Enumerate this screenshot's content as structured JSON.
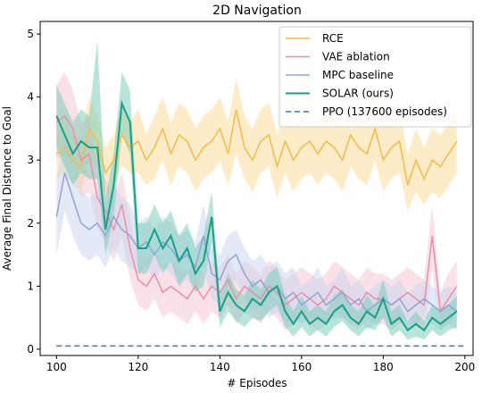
{
  "chart_data": {
    "type": "line",
    "title": "2D Navigation",
    "xlabel": "# Episodes",
    "ylabel": "Average Final Distance to Goal",
    "xlim": [
      96,
      202
    ],
    "ylim": [
      -0.1,
      5.2
    ],
    "xticks": [
      100,
      120,
      140,
      160,
      180,
      200
    ],
    "yticks": [
      0,
      1,
      2,
      3,
      4,
      5
    ],
    "grid": false,
    "legend_position": "top-right",
    "series": [
      {
        "name": "RCE",
        "color": "#f5b94c",
        "fill": "#fcd98f",
        "style": "solid",
        "x": [
          100,
          102,
          104,
          106,
          108,
          110,
          112,
          114,
          116,
          118,
          120,
          122,
          124,
          126,
          128,
          130,
          132,
          134,
          136,
          138,
          140,
          142,
          144,
          146,
          148,
          150,
          152,
          154,
          156,
          158,
          160,
          162,
          164,
          166,
          168,
          170,
          172,
          174,
          176,
          178,
          180,
          182,
          184,
          186,
          188,
          190,
          192,
          194,
          196,
          198
        ],
        "y": [
          3.1,
          3.2,
          3.0,
          2.9,
          3.5,
          3.3,
          2.8,
          3.0,
          3.4,
          3.2,
          3.3,
          3.0,
          3.2,
          3.5,
          3.1,
          3.4,
          3.3,
          3.0,
          3.2,
          3.3,
          3.5,
          3.1,
          3.8,
          3.2,
          3.0,
          3.3,
          3.4,
          2.9,
          3.3,
          3.0,
          3.2,
          3.3,
          3.1,
          3.3,
          3.2,
          3.0,
          3.4,
          3.2,
          3.1,
          3.5,
          3.0,
          3.2,
          3.3,
          2.6,
          3.0,
          2.7,
          3.0,
          2.9,
          3.1,
          3.3
        ],
        "lower": [
          2.7,
          2.8,
          2.6,
          2.5,
          3.0,
          2.9,
          2.4,
          2.6,
          2.9,
          2.8,
          2.8,
          2.6,
          2.7,
          3.0,
          2.6,
          2.9,
          2.8,
          2.5,
          2.7,
          2.8,
          3.0,
          2.6,
          3.1,
          2.7,
          2.5,
          2.8,
          2.9,
          2.4,
          2.8,
          2.5,
          2.7,
          2.8,
          2.6,
          2.8,
          2.7,
          2.5,
          2.9,
          2.7,
          2.6,
          3.0,
          2.5,
          2.7,
          2.8,
          2.2,
          2.5,
          2.3,
          2.5,
          2.4,
          2.6,
          2.8
        ],
        "upper": [
          3.5,
          3.7,
          3.4,
          3.3,
          4.0,
          3.7,
          3.2,
          3.4,
          3.9,
          3.6,
          3.8,
          3.4,
          3.7,
          4.0,
          3.6,
          3.9,
          3.8,
          3.5,
          3.7,
          3.8,
          4.0,
          3.6,
          4.3,
          3.7,
          3.5,
          3.8,
          3.9,
          3.4,
          3.8,
          3.5,
          3.7,
          3.8,
          3.6,
          3.8,
          3.7,
          3.5,
          3.9,
          3.7,
          3.6,
          4.0,
          3.5,
          3.7,
          3.8,
          3.1,
          3.5,
          3.2,
          3.5,
          3.4,
          3.6,
          3.8
        ]
      },
      {
        "name": "VAE ablation",
        "color": "#ea8fa8",
        "fill": "#f6c3d0",
        "style": "solid",
        "x": [
          100,
          102,
          104,
          106,
          108,
          110,
          112,
          114,
          116,
          118,
          120,
          122,
          124,
          126,
          128,
          130,
          132,
          134,
          136,
          138,
          140,
          142,
          144,
          146,
          148,
          150,
          152,
          154,
          156,
          158,
          160,
          162,
          164,
          166,
          168,
          170,
          172,
          174,
          176,
          178,
          180,
          182,
          184,
          186,
          188,
          190,
          192,
          194,
          196,
          198
        ],
        "y": [
          3.6,
          3.7,
          3.5,
          3.0,
          3.1,
          2.4,
          2.2,
          1.9,
          2.3,
          1.6,
          1.1,
          1.0,
          1.2,
          0.9,
          1.0,
          0.9,
          0.8,
          1.0,
          0.8,
          1.0,
          0.9,
          1.1,
          0.8,
          1.0,
          0.9,
          0.8,
          1.0,
          0.9,
          0.7,
          0.8,
          0.9,
          0.8,
          0.7,
          0.8,
          1.0,
          0.9,
          0.8,
          0.7,
          0.9,
          0.8,
          0.8,
          0.7,
          0.8,
          0.9,
          0.8,
          0.7,
          1.8,
          0.6,
          0.8,
          1.0
        ],
        "lower": [
          3.0,
          3.1,
          2.9,
          2.4,
          2.5,
          1.9,
          1.7,
          1.4,
          1.8,
          1.1,
          0.7,
          0.6,
          0.8,
          0.5,
          0.6,
          0.5,
          0.4,
          0.6,
          0.4,
          0.6,
          0.5,
          0.7,
          0.4,
          0.6,
          0.5,
          0.4,
          0.6,
          0.5,
          0.3,
          0.4,
          0.5,
          0.4,
          0.3,
          0.4,
          0.6,
          0.5,
          0.4,
          0.3,
          0.5,
          0.4,
          0.4,
          0.3,
          0.4,
          0.5,
          0.4,
          0.3,
          1.3,
          0.3,
          0.4,
          0.6
        ],
        "upper": [
          4.2,
          4.4,
          4.1,
          3.6,
          3.7,
          2.9,
          2.7,
          2.4,
          2.8,
          2.1,
          1.5,
          1.4,
          1.6,
          1.3,
          1.4,
          1.3,
          1.2,
          1.4,
          1.2,
          1.4,
          1.3,
          1.5,
          1.2,
          1.4,
          1.3,
          1.2,
          1.4,
          1.3,
          1.1,
          1.2,
          1.3,
          1.2,
          1.1,
          1.2,
          1.4,
          1.3,
          1.2,
          1.1,
          1.3,
          1.2,
          1.2,
          1.1,
          1.2,
          1.3,
          1.2,
          1.1,
          2.3,
          0.9,
          1.2,
          1.4
        ]
      },
      {
        "name": "MPC baseline",
        "color": "#8fa5d8",
        "fill": "#c7d3ee",
        "style": "solid",
        "x": [
          100,
          102,
          104,
          106,
          108,
          110,
          112,
          114,
          116,
          118,
          120,
          122,
          124,
          126,
          128,
          130,
          132,
          134,
          136,
          138,
          140,
          142,
          144,
          146,
          148,
          150,
          152,
          154,
          156,
          158,
          160,
          162,
          164,
          166,
          168,
          170,
          172,
          174,
          176,
          178,
          180,
          182,
          184,
          186,
          188,
          190,
          192,
          194,
          196,
          198
        ],
        "y": [
          2.1,
          2.8,
          2.4,
          2.0,
          1.9,
          2.0,
          1.8,
          2.1,
          1.9,
          1.8,
          1.6,
          1.7,
          1.5,
          1.7,
          1.6,
          1.4,
          1.5,
          1.3,
          1.8,
          1.2,
          1.1,
          1.4,
          1.5,
          1.2,
          1.0,
          1.1,
          0.9,
          1.0,
          0.8,
          0.9,
          0.7,
          0.8,
          0.9,
          0.7,
          0.8,
          0.9,
          0.7,
          0.8,
          0.6,
          0.7,
          0.8,
          0.7,
          0.8,
          0.6,
          0.7,
          0.8,
          0.7,
          0.6,
          0.7,
          0.6
        ],
        "lower": [
          1.5,
          2.2,
          1.8,
          1.5,
          1.4,
          1.5,
          1.3,
          1.6,
          1.4,
          1.3,
          1.2,
          1.3,
          1.1,
          1.3,
          1.2,
          1.0,
          1.1,
          0.9,
          1.3,
          0.8,
          0.7,
          1.0,
          1.1,
          0.8,
          0.6,
          0.7,
          0.5,
          0.6,
          0.4,
          0.5,
          0.4,
          0.5,
          0.5,
          0.4,
          0.5,
          0.5,
          0.4,
          0.5,
          0.3,
          0.4,
          0.5,
          0.4,
          0.5,
          0.3,
          0.4,
          0.5,
          0.4,
          0.3,
          0.4,
          0.3
        ],
        "upper": [
          2.7,
          3.4,
          3.0,
          2.5,
          2.4,
          2.5,
          2.3,
          2.6,
          2.4,
          2.3,
          2.0,
          2.1,
          1.9,
          2.1,
          2.0,
          1.8,
          1.9,
          1.7,
          2.3,
          1.6,
          1.5,
          1.8,
          1.9,
          1.6,
          1.4,
          1.5,
          1.3,
          1.4,
          1.2,
          1.3,
          1.0,
          1.1,
          1.3,
          1.0,
          1.1,
          1.3,
          1.0,
          1.1,
          0.9,
          1.0,
          1.1,
          1.0,
          1.1,
          0.9,
          1.0,
          1.1,
          1.0,
          0.9,
          1.0,
          0.9
        ]
      },
      {
        "name": "SOLAR (ours)",
        "color": "#1a9e8a",
        "fill": "#72c9b5",
        "style": "solid",
        "x": [
          100,
          102,
          104,
          106,
          108,
          110,
          112,
          114,
          116,
          118,
          120,
          122,
          124,
          126,
          128,
          130,
          132,
          134,
          136,
          138,
          140,
          142,
          144,
          146,
          148,
          150,
          152,
          154,
          156,
          158,
          160,
          162,
          164,
          166,
          168,
          170,
          172,
          174,
          176,
          178,
          180,
          182,
          184,
          186,
          188,
          190,
          192,
          194,
          196,
          198
        ],
        "y": [
          3.7,
          3.4,
          3.1,
          3.3,
          3.2,
          3.2,
          1.9,
          2.6,
          3.9,
          3.6,
          1.6,
          1.6,
          1.9,
          1.6,
          1.8,
          1.4,
          1.6,
          1.2,
          1.4,
          2.1,
          0.6,
          0.9,
          0.7,
          0.6,
          0.8,
          0.7,
          0.9,
          1.0,
          0.6,
          0.4,
          0.6,
          0.4,
          0.5,
          0.4,
          0.6,
          0.7,
          0.5,
          0.4,
          0.6,
          0.5,
          0.8,
          0.4,
          0.5,
          0.3,
          0.4,
          0.3,
          0.5,
          0.4,
          0.5,
          0.6
        ],
        "lower": [
          3.2,
          2.9,
          2.6,
          2.8,
          2.7,
          2.7,
          1.5,
          2.1,
          3.4,
          3.1,
          1.2,
          1.2,
          1.5,
          1.2,
          1.4,
          1.0,
          1.2,
          0.9,
          1.0,
          1.7,
          0.35,
          0.6,
          0.45,
          0.35,
          0.5,
          0.45,
          0.6,
          0.7,
          0.35,
          0.2,
          0.35,
          0.2,
          0.3,
          0.2,
          0.35,
          0.45,
          0.3,
          0.2,
          0.35,
          0.3,
          0.5,
          0.2,
          0.3,
          0.15,
          0.2,
          0.15,
          0.3,
          0.2,
          0.3,
          0.35
        ],
        "upper": [
          4.2,
          3.9,
          3.6,
          3.8,
          3.7,
          4.9,
          2.4,
          3.1,
          4.4,
          4.1,
          2.0,
          2.0,
          2.3,
          2.0,
          2.2,
          1.8,
          2.0,
          1.6,
          1.8,
          2.5,
          0.85,
          1.2,
          0.95,
          0.85,
          1.1,
          0.95,
          1.2,
          1.3,
          0.85,
          0.6,
          0.85,
          0.6,
          0.7,
          0.6,
          0.85,
          0.95,
          0.7,
          0.6,
          0.85,
          0.7,
          1.1,
          0.6,
          0.7,
          0.45,
          0.6,
          0.45,
          0.7,
          0.6,
          0.7,
          0.85
        ]
      },
      {
        "name": "PPO (137600 episodes)",
        "color": "#2f7bbf",
        "style": "dashed",
        "x": [
          100,
          200
        ],
        "y": [
          0.05,
          0.05
        ]
      }
    ]
  }
}
